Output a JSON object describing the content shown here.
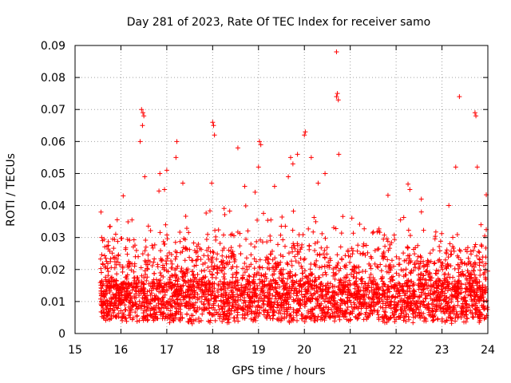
{
  "chart_data": {
    "type": "scatter",
    "title": "Day 281 of 2023, Rate Of TEC Index for receiver samo",
    "xlabel": "GPS time / hours",
    "ylabel": "ROTI / TECUs",
    "xlim": [
      15,
      24
    ],
    "ylim": [
      0,
      0.09
    ],
    "xticks": [
      "15",
      "16",
      "17",
      "18",
      "19",
      "20",
      "21",
      "22",
      "23",
      "24"
    ],
    "yticks": [
      "0",
      "0.01",
      "0.02",
      "0.03",
      "0.04",
      "0.05",
      "0.06",
      "0.07",
      "0.08",
      "0.09"
    ],
    "grid": true,
    "marker": "+",
    "color": "#ff0000",
    "x_start": 15.55,
    "x_end": 24.0,
    "series": [
      {
        "name": "ROTI",
        "outliers": [
          [
            20.7,
            0.088
          ],
          [
            20.72,
            0.075
          ],
          [
            20.7,
            0.074
          ],
          [
            20.74,
            0.073
          ],
          [
            23.38,
            0.074
          ],
          [
            16.45,
            0.07
          ],
          [
            16.48,
            0.069
          ],
          [
            16.5,
            0.068
          ],
          [
            16.47,
            0.065
          ],
          [
            16.42,
            0.06
          ],
          [
            23.72,
            0.069
          ],
          [
            23.74,
            0.068
          ],
          [
            17.22,
            0.06
          ],
          [
            18.0,
            0.066
          ],
          [
            18.02,
            0.065
          ],
          [
            18.04,
            0.062
          ],
          [
            19.02,
            0.06
          ],
          [
            19.05,
            0.059
          ],
          [
            20.02,
            0.063
          ],
          [
            20.0,
            0.062
          ],
          [
            18.55,
            0.058
          ],
          [
            19.85,
            0.056
          ],
          [
            20.75,
            0.056
          ],
          [
            23.3,
            0.052
          ],
          [
            23.77,
            0.052
          ],
          [
            16.52,
            0.049
          ],
          [
            17.2,
            0.055
          ],
          [
            19.7,
            0.055
          ],
          [
            19.75,
            0.053
          ],
          [
            20.15,
            0.055
          ],
          [
            17.0,
            0.051
          ],
          [
            19.0,
            0.052
          ],
          [
            16.85,
            0.05
          ],
          [
            20.45,
            0.05
          ],
          [
            18.7,
            0.046
          ],
          [
            19.35,
            0.046
          ],
          [
            17.98,
            0.047
          ],
          [
            15.58,
            0.03
          ],
          [
            15.6,
            0.029
          ],
          [
            16.05,
            0.043
          ],
          [
            16.95,
            0.045
          ],
          [
            17.35,
            0.047
          ],
          [
            19.65,
            0.049
          ],
          [
            20.3,
            0.047
          ],
          [
            22.3,
            0.045
          ],
          [
            22.55,
            0.042
          ],
          [
            23.15,
            0.04
          ],
          [
            23.85,
            0.034
          ]
        ]
      }
    ]
  }
}
